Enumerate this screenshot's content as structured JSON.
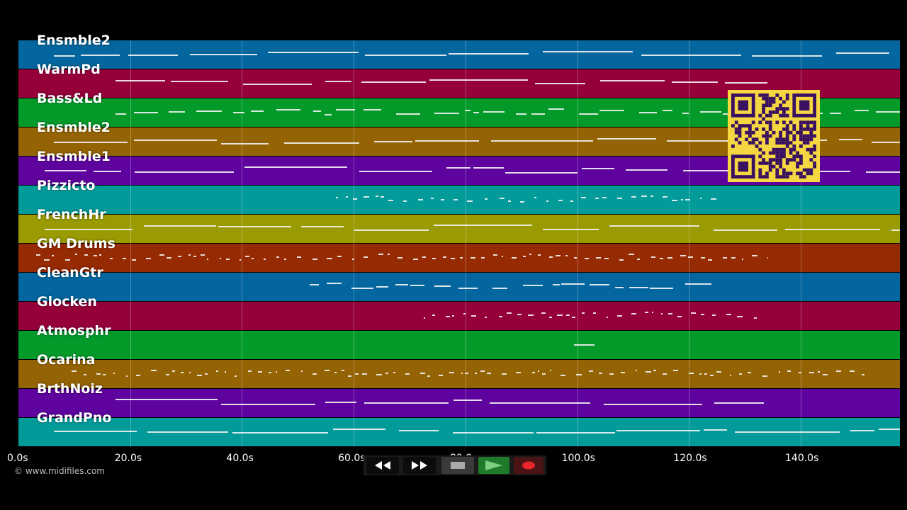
{
  "tracks": [
    {
      "label": "Ensmble2",
      "color": "#03669e"
    },
    {
      "label": "WarmPd",
      "color": "#95003a"
    },
    {
      "label": "Bass&Ld",
      "color": "#039a2a"
    },
    {
      "label": "Ensmble2",
      "color": "#946303"
    },
    {
      "label": "Ensmble1",
      "color": "#5e039e"
    },
    {
      "label": "Pizzicto",
      "color": "#039a9a"
    },
    {
      "label": "FrenchHr",
      "color": "#9a9a03"
    },
    {
      "label": "GM Drums",
      "color": "#962a03"
    },
    {
      "label": "CleanGtr",
      "color": "#03669e"
    },
    {
      "label": "Glocken",
      "color": "#95003a"
    },
    {
      "label": "Atmosphr",
      "color": "#039a2a"
    },
    {
      "label": "Ocarina",
      "color": "#946303"
    },
    {
      "label": "BrthNoiz",
      "color": "#5e039e"
    },
    {
      "label": "GrandPno",
      "color": "#039a9a"
    }
  ],
  "timeline": {
    "max_seconds": 158,
    "ticks": [
      "0.0s",
      "20.0s",
      "40.0s",
      "60.0s",
      "80.0s",
      "100.0s",
      "120.0s",
      "140.0s"
    ]
  },
  "copyright": "© www.midifiles.com",
  "controls": {
    "rewind": "rewind-icon",
    "fast_forward": "fast-forward-icon",
    "stop": "stop-icon",
    "play": "play-icon",
    "record": "record-icon"
  },
  "qr_code": "qr-code-icon"
}
